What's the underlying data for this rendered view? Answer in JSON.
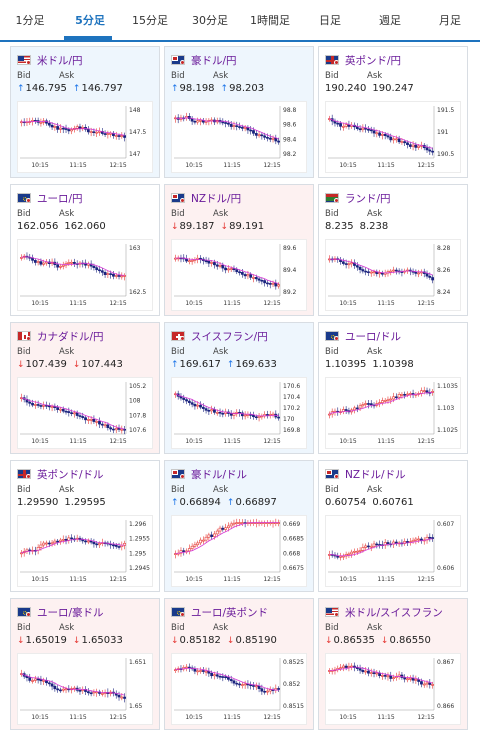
{
  "tabs": [
    "1分足",
    "5分足",
    "15分足",
    "30分足",
    "1時間足",
    "日足",
    "週足",
    "月足"
  ],
  "active_tab": 1,
  "labels": {
    "bid": "Bid",
    "ask": "Ask"
  },
  "cards": [
    {
      "pair": "米ドル/円",
      "dir": "up",
      "bid": "146.795",
      "ask": "146.797",
      "flag": "us-jp",
      "yticks": [
        "148",
        "147.5",
        "147"
      ],
      "xticks": [
        "10:15",
        "11:15",
        "12:15"
      ],
      "trend": "down"
    },
    {
      "pair": "豪ドル/円",
      "dir": "up",
      "bid": "98.198",
      "ask": "98.203",
      "flag": "au-jp",
      "yticks": [
        "98.8",
        "98.6",
        "98.4",
        "98.2"
      ],
      "xticks": [
        "10:15",
        "11:15",
        "12:15"
      ],
      "trend": "down"
    },
    {
      "pair": "英ポンド/円",
      "dir": "flat",
      "bid": "190.240",
      "ask": "190.247",
      "flag": "gb-jp",
      "yticks": [
        "191.5",
        "191",
        "190.5"
      ],
      "xticks": [
        "10:15",
        "11:15",
        "12:15"
      ],
      "trend": "down"
    },
    {
      "pair": "ユーロ/円",
      "dir": "flat",
      "bid": "162.056",
      "ask": "162.060",
      "flag": "eu-jp",
      "yticks": [
        "163",
        "162.5"
      ],
      "xticks": [
        "10:15",
        "11:15",
        "12:15"
      ],
      "trend": "down"
    },
    {
      "pair": "NZドル/円",
      "dir": "down",
      "bid": "89.187",
      "ask": "89.191",
      "flag": "nz-jp",
      "yticks": [
        "89.6",
        "89.4",
        "89.2"
      ],
      "xticks": [
        "10:15",
        "11:15",
        "12:15"
      ],
      "trend": "down"
    },
    {
      "pair": "ランド/円",
      "dir": "flat",
      "bid": "8.235",
      "ask": "8.238",
      "flag": "za-jp",
      "yticks": [
        "8.28",
        "8.26",
        "8.24"
      ],
      "xticks": [
        "10:15",
        "11:15",
        "12:15"
      ],
      "trend": "down"
    },
    {
      "pair": "カナダドル/円",
      "dir": "down",
      "bid": "107.439",
      "ask": "107.443",
      "flag": "ca-jp",
      "yticks": [
        "105.2",
        "108",
        "107.8",
        "107.6"
      ],
      "xticks": [
        "10:15",
        "11:15",
        "12:15"
      ],
      "trend": "down"
    },
    {
      "pair": "スイスフラン/円",
      "dir": "up",
      "bid": "169.617",
      "ask": "169.633",
      "flag": "ch-jp",
      "yticks": [
        "170.6",
        "170.4",
        "170.2",
        "170",
        "169.8"
      ],
      "xticks": [
        "10:15",
        "11:15",
        "12:15"
      ],
      "trend": "down"
    },
    {
      "pair": "ユーロ/ドル",
      "dir": "flat",
      "bid": "1.10395",
      "ask": "1.10398",
      "flag": "eu-us",
      "yticks": [
        "1.1035",
        "1.103",
        "1.1025"
      ],
      "xticks": [
        "10:15",
        "11:15",
        "12:15"
      ],
      "trend": "up"
    },
    {
      "pair": "英ポンド/ドル",
      "dir": "flat",
      "bid": "1.29590",
      "ask": "1.29595",
      "flag": "gb-us",
      "yticks": [
        "1.296",
        "1.2955",
        "1.295",
        "1.2945"
      ],
      "xticks": [
        "10:15",
        "11:15",
        "12:15"
      ],
      "trend": "up"
    },
    {
      "pair": "豪ドル/ドル",
      "dir": "up",
      "bid": "0.66894",
      "ask": "0.66897",
      "flag": "au-us",
      "yticks": [
        "0.669",
        "0.6685",
        "0.668",
        "0.6675"
      ],
      "xticks": [
        "10:15",
        "11:15",
        "12:15"
      ],
      "trend": "up"
    },
    {
      "pair": "NZドル/ドル",
      "dir": "flat",
      "bid": "0.60754",
      "ask": "0.60761",
      "flag": "nz-us",
      "yticks": [
        "0.607",
        "0.606"
      ],
      "xticks": [
        "10:15",
        "11:15",
        "12:15"
      ],
      "trend": "up"
    },
    {
      "pair": "ユーロ/豪ドル",
      "dir": "down",
      "bid": "1.65019",
      "ask": "1.65033",
      "flag": "eu-au",
      "yticks": [
        "1.651",
        "1.65"
      ],
      "xticks": [
        "10:15",
        "11:15",
        "12:15"
      ],
      "trend": "down"
    },
    {
      "pair": "ユーロ/英ポンド",
      "dir": "down",
      "bid": "0.85182",
      "ask": "0.85190",
      "flag": "eu-gb",
      "yticks": [
        "0.8525",
        "0.852",
        "0.8515"
      ],
      "xticks": [
        "10:15",
        "11:15",
        "12:15"
      ],
      "trend": "down"
    },
    {
      "pair": "米ドル/スイスフラン",
      "dir": "down",
      "bid": "0.86535",
      "ask": "0.86550",
      "flag": "us-ch",
      "yticks": [
        "0.867",
        "0.866"
      ],
      "xticks": [
        "10:15",
        "11:15",
        "12:15"
      ],
      "trend": "down"
    }
  ],
  "colors": {
    "accent": "#1e73be",
    "pair_text": "#6a1b9a",
    "up_candle": "#e53935",
    "down_candle": "#1a237e",
    "ma_line": "#d63ad6",
    "up_arrow": "#1a73e8",
    "down_arrow": "#e53935"
  }
}
